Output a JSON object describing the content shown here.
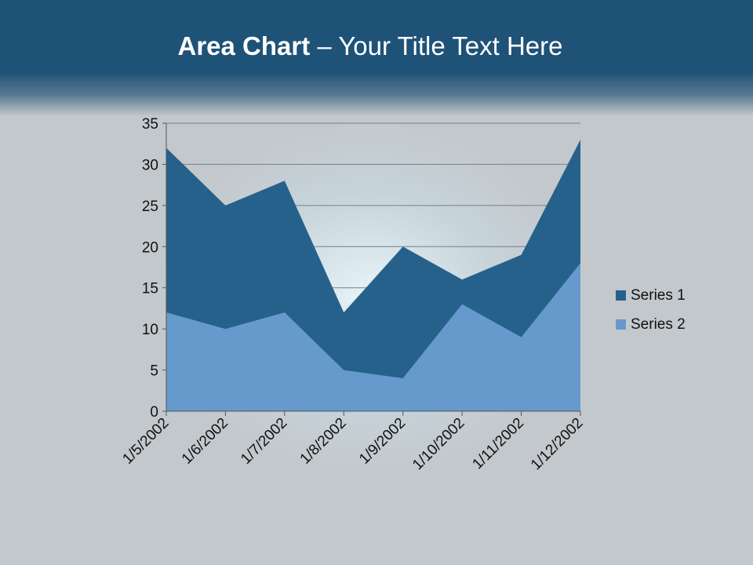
{
  "title": {
    "bold": "Area Chart",
    "rest": " – Your Title Text Here"
  },
  "chart_data": {
    "type": "area",
    "categories": [
      "1/5/2002",
      "1/6/2002",
      "1/7/2002",
      "1/8/2002",
      "1/9/2002",
      "1/10/2002",
      "1/11/2002",
      "1/12/2002"
    ],
    "series": [
      {
        "name": "Series 1",
        "values": [
          32,
          25,
          28,
          12,
          20,
          16,
          19,
          33
        ],
        "color": "#26618c"
      },
      {
        "name": "Series 2",
        "values": [
          12,
          10,
          12,
          5,
          4,
          13,
          9,
          18
        ],
        "color": "#6699cc"
      }
    ],
    "ylim": [
      0,
      35
    ],
    "yticks": [
      "0",
      "5",
      "10",
      "15",
      "20",
      "25",
      "30",
      "35"
    ],
    "grid": true,
    "legend": "right"
  }
}
